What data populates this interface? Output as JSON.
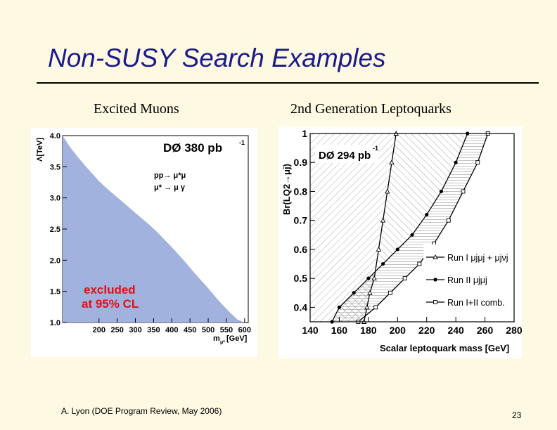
{
  "slide": {
    "title": "Non-SUSY Search Examples",
    "left_heading": "Excited Muons",
    "right_heading": "2nd Generation Leptoquarks",
    "footer": "A. Lyon (DOE Program Review, May 2006)",
    "page_number": "23"
  },
  "colors": {
    "title": "#1a1a8a",
    "excluded_fill": "#a2b2de",
    "excluded_text": "#e01010",
    "background": "#fdf9e2"
  },
  "chart_data": [
    {
      "type": "area",
      "experiment_label": "DØ  380 pb",
      "lumi_exponent": "-1",
      "process_line1": "pp→ μ*μ",
      "process_line2": "μ* → μ γ",
      "excluded_line1": "excluded",
      "excluded_line2": "at 95% CL",
      "ylabel": "Λ[TeV]",
      "xlabel": "m",
      "xlabel_sub": "μ*",
      "xlabel_unit": "[GeV]",
      "xlim": [
        100,
        610
      ],
      "ylim": [
        1.0,
        4.0
      ],
      "x_ticks": [
        "200",
        "250",
        "300",
        "350",
        "400",
        "450",
        "500",
        "550",
        "600"
      ],
      "y_ticks": [
        "1.0",
        "1.5",
        "2.0",
        "2.5",
        "3.0",
        "3.5",
        "4.0"
      ],
      "boundary": {
        "x": [
          100,
          120,
          140,
          160,
          180,
          200,
          220,
          240,
          260,
          280,
          300,
          320,
          340,
          360,
          380,
          400,
          420,
          440,
          460,
          480,
          500,
          520,
          540,
          560,
          580,
          600,
          610
        ],
        "y": [
          4.0,
          3.82,
          3.67,
          3.53,
          3.4,
          3.27,
          3.16,
          3.06,
          2.96,
          2.86,
          2.76,
          2.66,
          2.56,
          2.45,
          2.33,
          2.21,
          2.08,
          1.95,
          1.81,
          1.68,
          1.55,
          1.41,
          1.28,
          1.16,
          1.05,
          1.0,
          1.0
        ]
      }
    },
    {
      "type": "line",
      "experiment_label": "DØ  294 pb",
      "lumi_exponent": "-1",
      "ylabel": "Br(LQ2→μj)",
      "xlabel": "Scalar leptoquark mass [GeV]",
      "xlim": [
        140,
        280
      ],
      "ylim": [
        0.35,
        1.0
      ],
      "x_ticks": [
        "140",
        "160",
        "180",
        "200",
        "220",
        "240",
        "260",
        "280"
      ],
      "y_ticks": [
        "0.4",
        "0.5",
        "0.6",
        "0.7",
        "0.8",
        "0.9",
        "1"
      ],
      "series": [
        {
          "name": "Run I μjμj + μjνj",
          "marker": "triangle",
          "x": [
            177,
            179,
            181,
            184,
            187,
            190,
            193,
            196,
            199
          ],
          "y": [
            0.35,
            0.4,
            0.45,
            0.5,
            0.6,
            0.7,
            0.8,
            0.9,
            1.0
          ]
        },
        {
          "name": "Run II μjμj",
          "marker": "filled-diamond",
          "x": [
            155,
            160,
            170,
            180,
            190,
            200,
            210,
            220,
            230,
            240,
            248
          ],
          "y": [
            0.35,
            0.4,
            0.45,
            0.5,
            0.55,
            0.6,
            0.65,
            0.72,
            0.8,
            0.9,
            1.0
          ]
        },
        {
          "name": "Run I+II comb.",
          "marker": "open-square",
          "x": [
            173,
            185,
            195,
            205,
            215,
            225,
            235,
            245,
            255,
            262
          ],
          "y": [
            0.35,
            0.4,
            0.45,
            0.5,
            0.55,
            0.62,
            0.7,
            0.8,
            0.9,
            1.0
          ]
        }
      ]
    }
  ]
}
